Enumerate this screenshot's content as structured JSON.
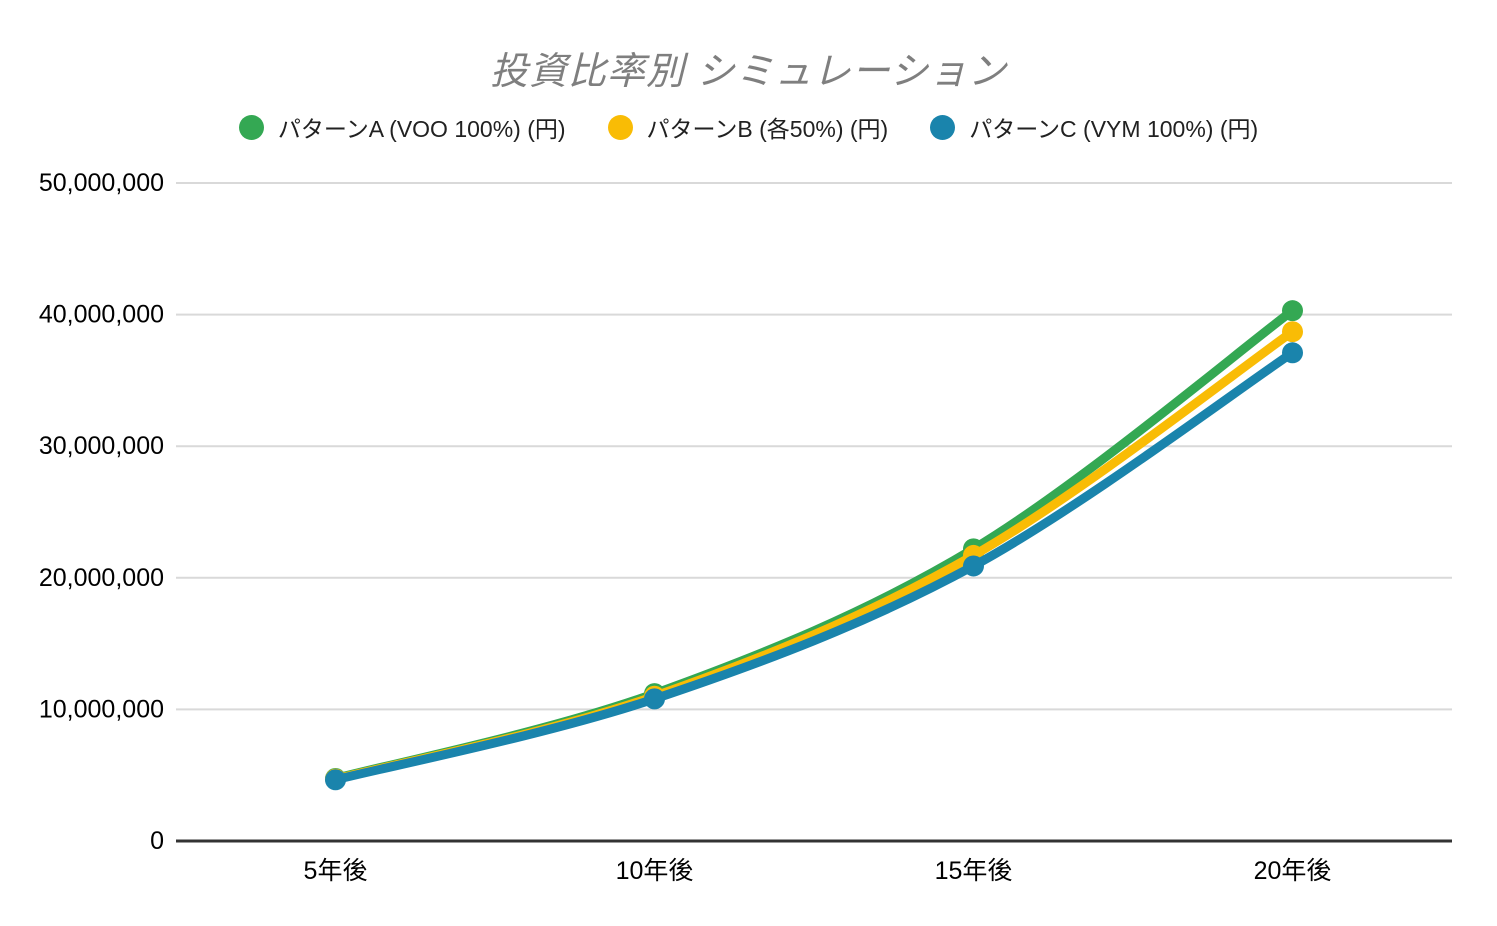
{
  "title": "投資比率別 シミュレーション",
  "legend": {
    "position": "top",
    "items": [
      {
        "label": "パターンA (VOO 100%) (円)",
        "color": "#34A853"
      },
      {
        "label": "パターンB (各50%) (円)",
        "color": "#F9BC05"
      },
      {
        "label": "パターンC (VYM 100%) (円)",
        "color": "#1A84AC"
      }
    ]
  },
  "chart_data": {
    "type": "line",
    "smooth": true,
    "categories": [
      "5年後",
      "10年後",
      "15年後",
      "20年後"
    ],
    "series": [
      {
        "key": "pattern-a",
        "name": "パターンA (VOO 100%) (円)",
        "color": "#34A853",
        "values": [
          4750000,
          11200000,
          22200000,
          40300000
        ]
      },
      {
        "key": "pattern-b",
        "name": "パターンB (各50%) (円)",
        "color": "#F9BC05",
        "values": [
          4700000,
          11000000,
          21700000,
          38700000
        ]
      },
      {
        "key": "pattern-c",
        "name": "パターンC (VYM 100%) (円)",
        "color": "#1A84AC",
        "values": [
          4650000,
          10800000,
          20900000,
          37100000
        ]
      }
    ],
    "title": "投資比率別 シミュレーション",
    "xlabel": "",
    "ylabel": "",
    "ylim": [
      0,
      50000000
    ],
    "ytick_step": 10000000,
    "ytick_labels": [
      "0",
      "10,000,000",
      "20,000,000",
      "30,000,000",
      "40,000,000",
      "50,000,000"
    ],
    "grid": true,
    "legend_position": "top"
  },
  "colors": {
    "background": "#FFFFFF",
    "title_text": "#7F7F7F",
    "legend_text": "#212121",
    "tick_text": "#000000",
    "gridline": "#D9D9D9",
    "axis_line": "#333333"
  }
}
